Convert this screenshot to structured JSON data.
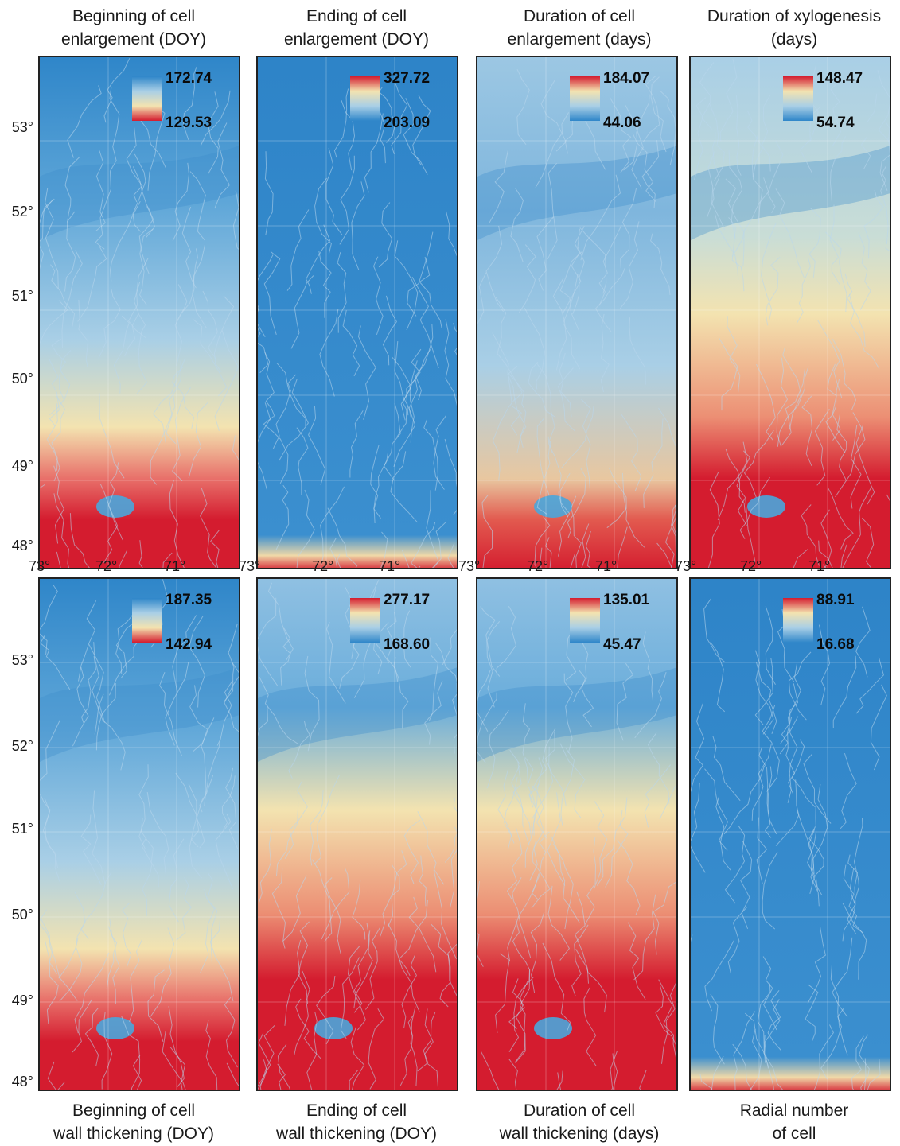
{
  "panels": [
    {
      "title": "Beginning of cell\nenlargement (DOY)",
      "max": "172.74",
      "min": "129.53",
      "ramp": "blue-top",
      "pattern": "begin"
    },
    {
      "title": "Ending of cell\nenlargement (DOY)",
      "max": "327.72",
      "min": "203.09",
      "ramp": "red-top",
      "pattern": "uniform-blue"
    },
    {
      "title": "Duration of cell\nenlargement (days)",
      "max": "184.07",
      "min": "44.06",
      "ramp": "red-top",
      "pattern": "dur-enl"
    },
    {
      "title": "Duration of xylogenesis\n(days)",
      "max": "148.47",
      "min": "54.74",
      "ramp": "red-top",
      "pattern": "xylo"
    },
    {
      "title": "Beginning of cell\nwall thickening (DOY)",
      "max": "187.35",
      "min": "142.94",
      "ramp": "blue-top",
      "pattern": "begin"
    },
    {
      "title": "Ending of cell\nwall thickening (DOY)",
      "max": "277.17",
      "min": "168.60",
      "ramp": "red-top",
      "pattern": "end-wall"
    },
    {
      "title": "Duration of cell\nwall thickening (days)",
      "max": "135.01",
      "min": "45.47",
      "ramp": "red-top",
      "pattern": "end-wall"
    },
    {
      "title": "Radial number\nof cell",
      "max": "88.91",
      "min": "16.68",
      "ramp": "red-top",
      "pattern": "uniform-blue"
    }
  ],
  "latitude_labels": [
    "53°",
    "52°",
    "51°",
    "50°",
    "49°",
    "48°"
  ],
  "longitude_labels": [
    "73°",
    "72°",
    "71°"
  ],
  "colors": {
    "red": "#d41c2f",
    "blue": "#2f86c9",
    "cream": "#f3e3b0",
    "lightblue": "#a9cfe6"
  }
}
